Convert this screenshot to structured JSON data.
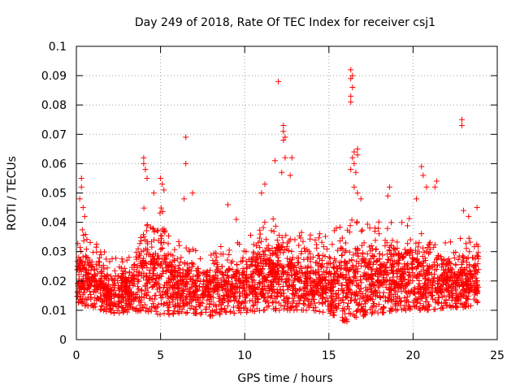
{
  "chart_data": {
    "type": "scatter",
    "title": "Day 249 of 2018, Rate Of TEC Index for receiver csj1",
    "xlabel": "GPS time / hours",
    "ylabel": "ROTI / TECUs",
    "xlim": [
      0,
      25
    ],
    "ylim": [
      0,
      0.1
    ],
    "x_ticks": [
      0,
      5,
      10,
      15,
      20,
      25
    ],
    "x_tick_labels": [
      "0",
      "5",
      "10",
      "15",
      "20",
      "25"
    ],
    "y_ticks": [
      0,
      0.01,
      0.02,
      0.03,
      0.04,
      0.05,
      0.06,
      0.07,
      0.08,
      0.09,
      0.1
    ],
    "y_tick_labels": [
      "0",
      "0.01",
      "0.02",
      "0.03",
      "0.04",
      "0.05",
      "0.06",
      "0.07",
      "0.08",
      "0.09",
      "0.1"
    ],
    "grid": true,
    "marker": "+",
    "color": "#ff0000",
    "envelope_hours": [
      0,
      1,
      2,
      3,
      4,
      5,
      6,
      7,
      8,
      9,
      10,
      11,
      12,
      13,
      14,
      15,
      16,
      17,
      18,
      19,
      20,
      21,
      22,
      23,
      24
    ],
    "envelope_min": [
      0.012,
      0.011,
      0.009,
      0.009,
      0.01,
      0.008,
      0.009,
      0.009,
      0.008,
      0.009,
      0.009,
      0.01,
      0.01,
      0.01,
      0.01,
      0.009,
      0.006,
      0.008,
      0.009,
      0.01,
      0.01,
      0.01,
      0.011,
      0.011,
      0.012
    ],
    "envelope_max": [
      0.04,
      0.034,
      0.028,
      0.028,
      0.045,
      0.048,
      0.034,
      0.031,
      0.03,
      0.034,
      0.034,
      0.043,
      0.042,
      0.037,
      0.037,
      0.036,
      0.042,
      0.04,
      0.041,
      0.04,
      0.042,
      0.039,
      0.034,
      0.035,
      0.034
    ],
    "outliers": [
      {
        "x": 0.3,
        "y": 0.055
      },
      {
        "x": 0.3,
        "y": 0.052
      },
      {
        "x": 0.2,
        "y": 0.048
      },
      {
        "x": 0.4,
        "y": 0.045
      },
      {
        "x": 0.5,
        "y": 0.042
      },
      {
        "x": 4.0,
        "y": 0.062
      },
      {
        "x": 4.0,
        "y": 0.06
      },
      {
        "x": 4.1,
        "y": 0.058
      },
      {
        "x": 4.2,
        "y": 0.055
      },
      {
        "x": 4.6,
        "y": 0.05
      },
      {
        "x": 5.0,
        "y": 0.055
      },
      {
        "x": 5.1,
        "y": 0.053
      },
      {
        "x": 5.2,
        "y": 0.051
      },
      {
        "x": 6.5,
        "y": 0.069
      },
      {
        "x": 6.5,
        "y": 0.06
      },
      {
        "x": 6.4,
        "y": 0.048
      },
      {
        "x": 6.9,
        "y": 0.05
      },
      {
        "x": 9.0,
        "y": 0.046
      },
      {
        "x": 9.5,
        "y": 0.041
      },
      {
        "x": 11.0,
        "y": 0.05
      },
      {
        "x": 11.2,
        "y": 0.053
      },
      {
        "x": 11.8,
        "y": 0.061
      },
      {
        "x": 12.0,
        "y": 0.088
      },
      {
        "x": 12.3,
        "y": 0.073
      },
      {
        "x": 12.3,
        "y": 0.071
      },
      {
        "x": 12.4,
        "y": 0.069
      },
      {
        "x": 12.3,
        "y": 0.068
      },
      {
        "x": 12.4,
        "y": 0.062
      },
      {
        "x": 12.2,
        "y": 0.057
      },
      {
        "x": 12.8,
        "y": 0.062
      },
      {
        "x": 12.7,
        "y": 0.056
      },
      {
        "x": 16.3,
        "y": 0.092
      },
      {
        "x": 16.4,
        "y": 0.09
      },
      {
        "x": 16.3,
        "y": 0.089
      },
      {
        "x": 16.4,
        "y": 0.086
      },
      {
        "x": 16.3,
        "y": 0.083
      },
      {
        "x": 16.3,
        "y": 0.081
      },
      {
        "x": 16.5,
        "y": 0.064
      },
      {
        "x": 16.4,
        "y": 0.062
      },
      {
        "x": 16.5,
        "y": 0.06
      },
      {
        "x": 16.3,
        "y": 0.058
      },
      {
        "x": 16.6,
        "y": 0.057
      },
      {
        "x": 16.7,
        "y": 0.065
      },
      {
        "x": 16.7,
        "y": 0.063
      },
      {
        "x": 16.5,
        "y": 0.052
      },
      {
        "x": 16.7,
        "y": 0.05
      },
      {
        "x": 16.9,
        "y": 0.048
      },
      {
        "x": 18.6,
        "y": 0.052
      },
      {
        "x": 18.5,
        "y": 0.049
      },
      {
        "x": 20.5,
        "y": 0.059
      },
      {
        "x": 20.6,
        "y": 0.056
      },
      {
        "x": 20.8,
        "y": 0.052
      },
      {
        "x": 20.2,
        "y": 0.048
      },
      {
        "x": 21.4,
        "y": 0.054
      },
      {
        "x": 21.3,
        "y": 0.052
      },
      {
        "x": 22.9,
        "y": 0.075
      },
      {
        "x": 22.9,
        "y": 0.073
      },
      {
        "x": 23.0,
        "y": 0.044
      },
      {
        "x": 23.3,
        "y": 0.042
      },
      {
        "x": 23.8,
        "y": 0.045
      }
    ]
  }
}
